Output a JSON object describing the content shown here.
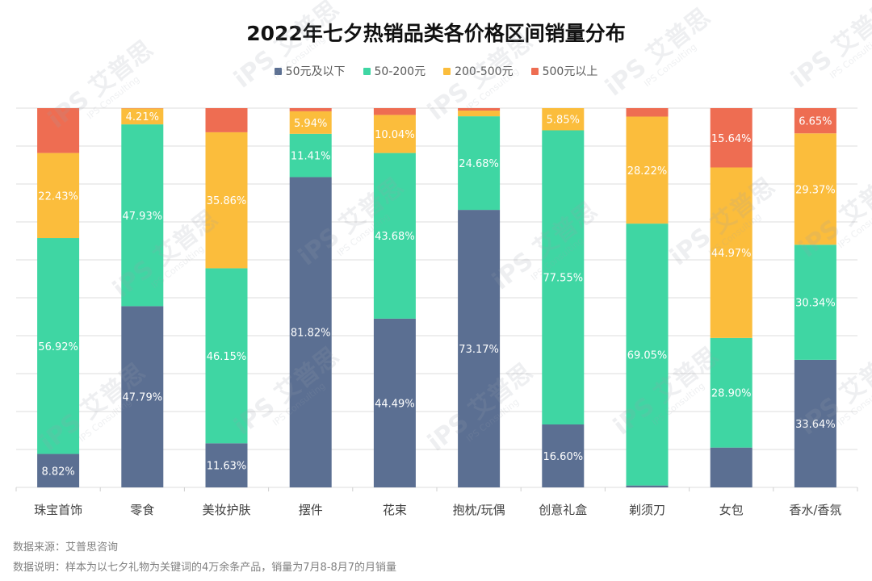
{
  "colors": {
    "series": [
      "#5b6f92",
      "#3fd6a3",
      "#fbbd3c",
      "#ee6d52"
    ],
    "grid": "#dcdcdc",
    "label_text": "#ffffff"
  },
  "chart_data": {
    "type": "bar",
    "stacked": true,
    "title": "2022年七夕热销品类各价格区间销量分布",
    "categories": [
      "珠宝首饰",
      "零食",
      "美妆护肤",
      "摆件",
      "花束",
      "抱枕/玩偶",
      "创意礼盒",
      "剃须刀",
      "女包",
      "香水/香氛"
    ],
    "series": [
      {
        "name": "50元及以下",
        "values": [
          8.82,
          47.79,
          11.63,
          81.82,
          44.49,
          73.17,
          16.6,
          0.5,
          10.5,
          33.64
        ],
        "labels": [
          "8.82%",
          "47.79%",
          "11.63%",
          "81.82%",
          "44.49%",
          "73.17%",
          "16.60%",
          "",
          "",
          "33.64%"
        ]
      },
      {
        "name": "50-200元",
        "values": [
          56.92,
          47.93,
          46.15,
          11.41,
          43.68,
          24.68,
          77.55,
          69.05,
          28.9,
          30.34
        ],
        "labels": [
          "56.92%",
          "47.93%",
          "46.15%",
          "11.41%",
          "43.68%",
          "24.68%",
          "77.55%",
          "69.05%",
          "28.90%",
          "30.34%"
        ]
      },
      {
        "name": "200-500元",
        "values": [
          22.43,
          4.21,
          35.86,
          5.94,
          10.04,
          1.5,
          5.85,
          28.22,
          44.97,
          29.37
        ],
        "labels": [
          "22.43%",
          "4.21%",
          "35.86%",
          "5.94%",
          "10.04%",
          "",
          "5.85%",
          "28.22%",
          "44.97%",
          "29.37%"
        ]
      },
      {
        "name": "500元以上",
        "values": [
          11.83,
          0.07,
          6.36,
          0.83,
          1.79,
          0.65,
          0.0,
          2.23,
          15.64,
          6.65
        ],
        "labels": [
          "",
          "",
          "",
          "",
          "",
          "",
          "",
          "",
          "15.64%",
          "6.65%"
        ]
      }
    ],
    "ylim": [
      0,
      100
    ],
    "legend_position": "top-center",
    "grid": true
  },
  "footer": {
    "source": "数据来源：艾普思咨询",
    "note": "数据说明：样本为以七夕礼物为关键词的4万余条产品，销量为7月8-8月7的月销量"
  },
  "watermark": {
    "brand": "艾普思",
    "sub": "IPS Consulting",
    "logo": "iPS"
  }
}
